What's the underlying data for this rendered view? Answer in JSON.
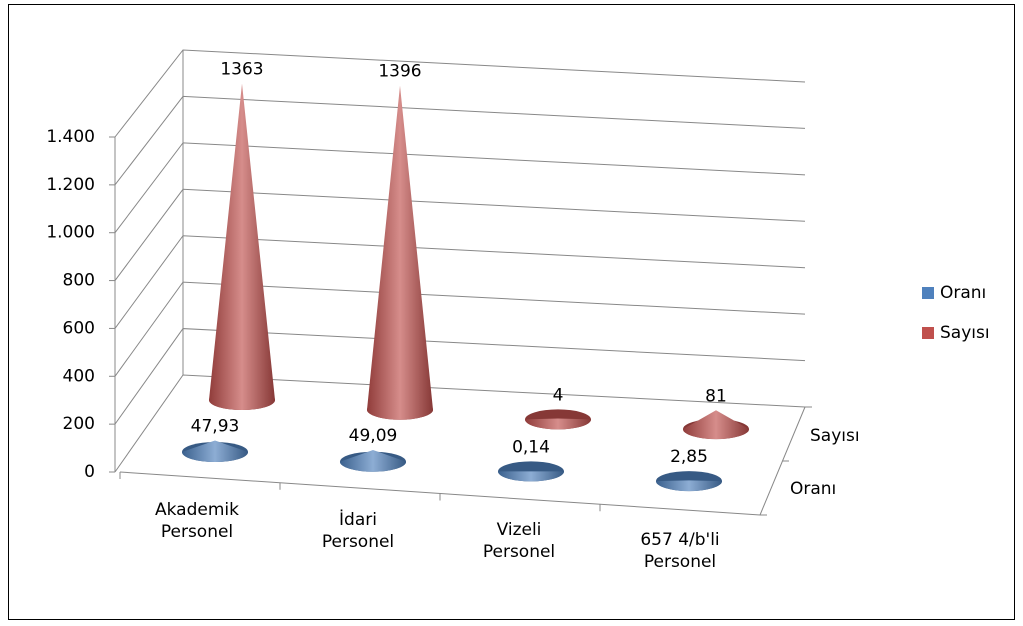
{
  "chart_data": {
    "type": "cone",
    "categories": [
      "Akademik Personel",
      "İdari Personel",
      "Vizeli Personel",
      "657 4/b'li Personel"
    ],
    "series": [
      {
        "name": "Oranı",
        "color": "#4f81bd",
        "values": [
          47.93,
          49.09,
          0.14,
          2.85
        ],
        "value_labels": [
          "47,93",
          "49,09",
          "0,14",
          "2,85"
        ]
      },
      {
        "name": "Sayısı",
        "color": "#c0504d",
        "values": [
          1363,
          1396,
          4,
          81
        ]
      }
    ],
    "ylim": [
      0,
      1400
    ],
    "yticks": [
      0,
      200,
      400,
      600,
      800,
      {
        "value": 1000,
        "label": "1.000"
      },
      {
        "value": 1200,
        "label": "1.200"
      },
      {
        "value": 1400,
        "label": "1.400"
      }
    ],
    "grid": true,
    "legend": "right"
  }
}
